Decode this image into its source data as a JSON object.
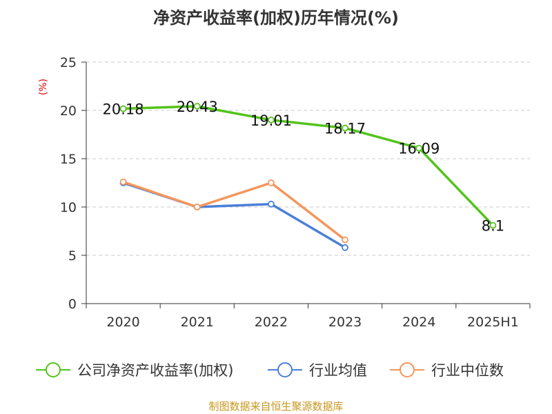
{
  "chart_data": {
    "type": "line",
    "title": "净资产收益率(加权)历年情况(%)",
    "ylabel": "(%)",
    "categories": [
      "2020",
      "2021",
      "2022",
      "2023",
      "2024",
      "2025H1"
    ],
    "ylim": [
      0,
      25
    ],
    "yticks": [
      "0",
      "5",
      "10",
      "15",
      "20",
      "25"
    ],
    "grid": true,
    "legend_position": "bottom",
    "series": [
      {
        "name": "公司净资产收益率(加权)",
        "color": "#52c41a",
        "values": [
          20.18,
          20.43,
          19.01,
          18.17,
          16.09,
          8.1
        ],
        "labels": [
          "20.18",
          "20.43",
          "19.01",
          "18.17",
          "16.09",
          "8.1"
        ]
      },
      {
        "name": "行业均值",
        "color": "#4a7fd8",
        "values": [
          12.5,
          10.0,
          10.3,
          5.8,
          null,
          null
        ]
      },
      {
        "name": "行业中位数",
        "color": "#f5955b",
        "values": [
          12.6,
          10.0,
          12.5,
          6.6,
          null,
          null
        ]
      }
    ]
  },
  "source": "制图数据来自恒生聚源数据库"
}
